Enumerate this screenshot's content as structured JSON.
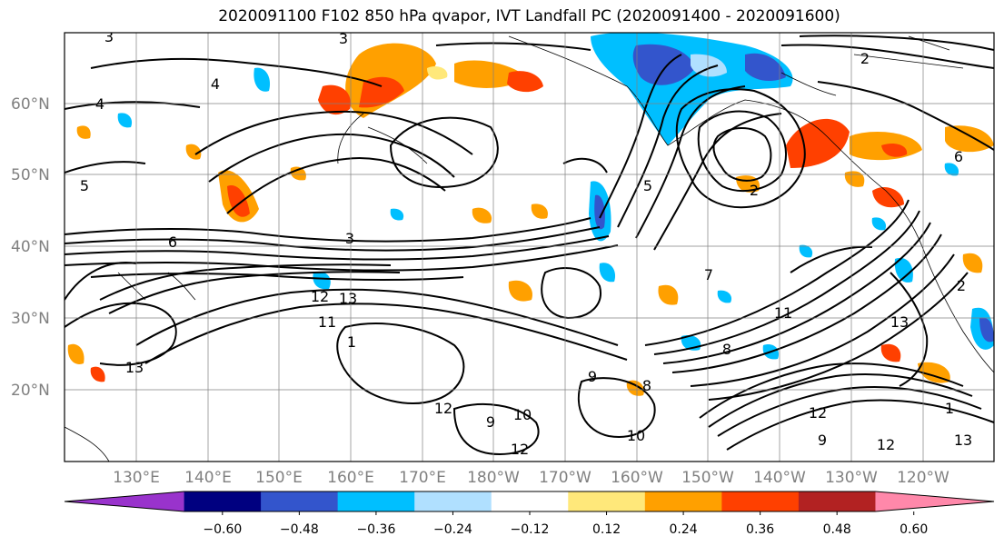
{
  "title": "2020091100 F102 850 hPa qvapor, IVT Landfall PC (2020091400 - 2020091600)",
  "lat_labels": [
    "60°N",
    "50°N",
    "40°N",
    "30°N",
    "20°N"
  ],
  "lon_labels": [
    "130°E",
    "140°E",
    "150°E",
    "160°E",
    "170°E",
    "180°W",
    "170°W",
    "160°W",
    "150°W",
    "140°W",
    "130°W",
    "120°W"
  ],
  "colorbar": {
    "colors": [
      "#9933cc",
      "#000080",
      "#3355cc",
      "#00bfff",
      "#b0e0ff",
      "#ffffff",
      "#ffe87a",
      "#ffa000",
      "#ff4000",
      "#b22222",
      "#ff88aa"
    ],
    "tick_labels": [
      "−0.60",
      "−0.48",
      "−0.36",
      "−0.24",
      "−0.12",
      "0.12",
      "0.24",
      "0.36",
      "0.48",
      "0.60"
    ]
  },
  "contour_labels": [
    "3",
    "3",
    "4",
    "4",
    "5",
    "6",
    "12",
    "13",
    "11",
    "13",
    "1",
    "9",
    "8",
    "10",
    "12",
    "9",
    "10",
    "12",
    "2",
    "2",
    "2",
    "7",
    "8",
    "11",
    "13",
    "12",
    "9",
    "12",
    "1",
    "13",
    "6",
    "3",
    "5"
  ]
}
